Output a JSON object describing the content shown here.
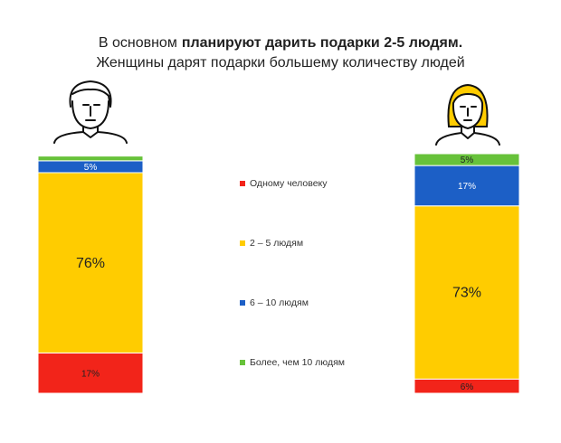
{
  "chart_data": {
    "type": "stacked-bar",
    "title": [
      "В основном",
      "планируют дарить подарки 2-5 людям."
    ],
    "subtitle": "Женщины дарят подарки большему количеству людей",
    "categories": [
      null,
      null
    ],
    "ylim": [
      0,
      101
    ],
    "series": [
      {
        "name": "Одному человеку",
        "color": "#f2241a",
        "values": [
          17,
          6
        ],
        "value_labels": [
          "17%",
          "6%"
        ]
      },
      {
        "name": "2 – 5 людям",
        "color": "#ffcc00",
        "values": [
          76,
          73
        ],
        "value_labels": [
          "76%",
          "73%"
        ]
      },
      {
        "name": "6 – 10 людям",
        "color": "#1c5fc6",
        "values": [
          5,
          17
        ],
        "value_labels": [
          "5%",
          "17%"
        ]
      },
      {
        "name": "Более, чем 10 людям",
        "color": "#67c23a",
        "values": [
          2,
          5
        ],
        "value_labels": [
          null,
          "5%"
        ]
      }
    ]
  }
}
